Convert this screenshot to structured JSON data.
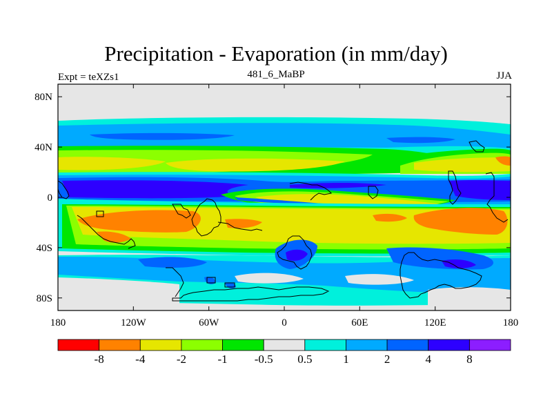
{
  "title": "Precipitation - Evaporation (in mm/day)",
  "left_label": "Expt = teXZs1",
  "center_label": "481_6_MaBP",
  "right_label": "JJA",
  "map": {
    "lon_ticks": [
      "180",
      "120W",
      "60W",
      "0",
      "60E",
      "120E",
      "180"
    ],
    "lat_ticks": [
      "80N",
      "40N",
      "0",
      "40S",
      "80S"
    ],
    "colors": {
      "lt_neg8": "#ff0000",
      "neg8_neg4": "#ff8200",
      "neg4_neg2": "#e6e600",
      "neg2_neg1": "#8cff00",
      "neg1_neg05": "#00e600",
      "neg05_05": "#e6e6e6",
      "p05_1": "#00f0dc",
      "p1_2": "#00aaff",
      "p2_4": "#0064ff",
      "p4_8": "#2d00ff",
      "gt_8": "#8c1eff"
    }
  },
  "colorbar": {
    "colors": [
      "#ff0000",
      "#ff8200",
      "#e6e600",
      "#8cff00",
      "#00e600",
      "#e6e6e6",
      "#00f0dc",
      "#00aaff",
      "#0064ff",
      "#2d00ff",
      "#8c1eff"
    ],
    "labels": [
      "-8",
      "-4",
      "-2",
      "-1",
      "-0.5",
      "0.5",
      "1",
      "2",
      "4",
      "8"
    ]
  }
}
